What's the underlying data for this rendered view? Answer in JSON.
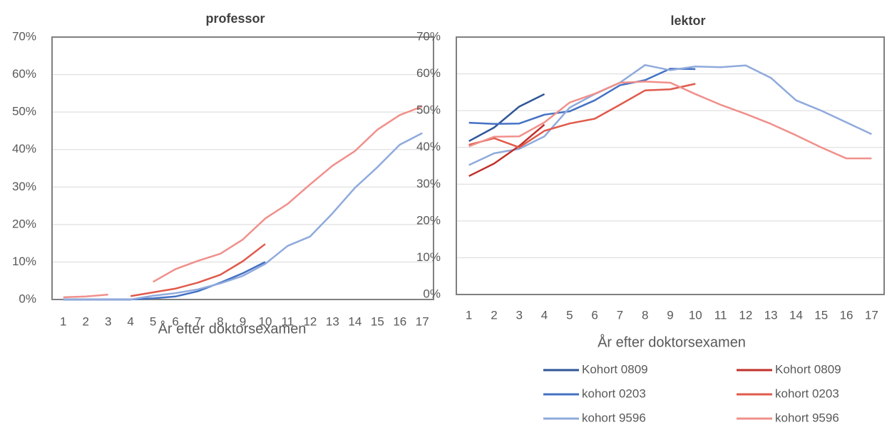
{
  "chart_data": [
    {
      "type": "line",
      "title": "professor",
      "x_label": "År efter doktorsexamen",
      "categories": [
        "1",
        "2",
        "3",
        "4",
        "5",
        "6",
        "7",
        "8",
        "9",
        "10",
        "11",
        "12",
        "13",
        "14",
        "15",
        "16",
        "17"
      ],
      "ylim": [
        0,
        70
      ],
      "yticks": [
        {
          "value": 0,
          "label": "0%"
        },
        {
          "value": 10,
          "label": "10%"
        },
        {
          "value": 20,
          "label": "20%"
        },
        {
          "value": 30,
          "label": "30%"
        },
        {
          "value": 40,
          "label": "40%"
        },
        {
          "value": 50,
          "label": "50%"
        },
        {
          "value": 60,
          "label": "60%"
        },
        {
          "value": 70,
          "label": "70%"
        }
      ],
      "grid": true,
      "series": [
        {
          "color": "#2f5597",
          "values": [
            0,
            0,
            0,
            0,
            null,
            null,
            null,
            null,
            null,
            null,
            null,
            null,
            null,
            null,
            null,
            null,
            null
          ]
        },
        {
          "color": "#4472c4",
          "values": [
            0,
            0,
            0,
            0,
            0.3,
            0.8,
            2.2,
            4.5,
            7,
            10,
            null,
            null,
            null,
            null,
            null,
            null,
            null
          ]
        },
        {
          "color": "#8faadc",
          "values": [
            0,
            0,
            0,
            0,
            1,
            1.7,
            2.7,
            4.3,
            6.3,
            9.5,
            14.3,
            16.8,
            23,
            29.8,
            35.3,
            41.3,
            44.4
          ]
        },
        {
          "color": "#c0302b",
          "values": [
            null,
            null,
            null,
            null,
            null,
            null,
            null,
            null,
            null,
            null,
            null,
            null,
            null,
            null,
            null,
            null,
            null
          ]
        },
        {
          "color": "#e05a4b",
          "values": [
            null,
            null,
            null,
            0.9,
            1.9,
            2.9,
            4.5,
            6.6,
            10.2,
            14.8,
            null,
            null,
            null,
            null,
            null,
            null,
            null
          ]
        },
        {
          "color": "#f0908b",
          "values": [
            0.6,
            0.8,
            1.3,
            null,
            4.7,
            8.1,
            10.3,
            12.2,
            16,
            21.6,
            25.5,
            30.7,
            35.7,
            39.6,
            45.3,
            49.2,
            51.5
          ]
        }
      ]
    },
    {
      "type": "line",
      "title": "lektor",
      "x_label": "År efter doktorsexamen",
      "categories": [
        "1",
        "2",
        "3",
        "4",
        "5",
        "6",
        "7",
        "8",
        "9",
        "10",
        "11",
        "12",
        "13",
        "14",
        "15",
        "16",
        "17"
      ],
      "ylim": [
        0,
        70
      ],
      "yticks": [
        {
          "value": 0,
          "label": "0%"
        },
        {
          "value": 10,
          "label": "10%"
        },
        {
          "value": 20,
          "label": "20%"
        },
        {
          "value": 30,
          "label": "30%"
        },
        {
          "value": 40,
          "label": "40%"
        },
        {
          "value": 50,
          "label": "50%"
        },
        {
          "value": 60,
          "label": "60%"
        },
        {
          "value": 70,
          "label": "70%"
        }
      ],
      "grid": true,
      "legend": "bottom",
      "series": [
        {
          "name": "Kohort 0809",
          "color": "#2f5597",
          "values": [
            41.7,
            45.4,
            51.1,
            54.5,
            null,
            null,
            null,
            null,
            null,
            null,
            null,
            null,
            null,
            null,
            null,
            null,
            null
          ]
        },
        {
          "name": "kohort 0203",
          "color": "#4472c4",
          "values": [
            46.7,
            46.4,
            46.5,
            48.9,
            49.8,
            52.8,
            56.9,
            58.3,
            61.4,
            61.3,
            null,
            null,
            null,
            null,
            null,
            null,
            null
          ]
        },
        {
          "name": "kohort 9596",
          "color": "#8faadc",
          "values": [
            35.2,
            38.4,
            39.6,
            43,
            50.8,
            54.5,
            57.6,
            62.4,
            61,
            62,
            61.8,
            62.3,
            58.9,
            52.8,
            50,
            46.8,
            43.6
          ]
        },
        {
          "name": "Kohort 0809",
          "color": "#c0302b",
          "values": [
            32.2,
            35.6,
            40.4,
            46.2,
            null,
            null,
            null,
            null,
            null,
            null,
            null,
            null,
            null,
            null,
            null,
            null,
            null
          ]
        },
        {
          "name": "kohort 0203",
          "color": "#e05a4b",
          "values": [
            40.7,
            42.5,
            40,
            44.5,
            46.5,
            47.8,
            51.6,
            55.5,
            55.8,
            57.3,
            null,
            null,
            null,
            null,
            null,
            null,
            null
          ]
        },
        {
          "name": "kohort 9596",
          "color": "#f0908b",
          "values": [
            40.3,
            42.9,
            43,
            46.8,
            52.2,
            54.6,
            57.6,
            57.9,
            57.6,
            54.5,
            51.6,
            49.1,
            46.4,
            43.3,
            40,
            37,
            37
          ]
        }
      ]
    }
  ]
}
